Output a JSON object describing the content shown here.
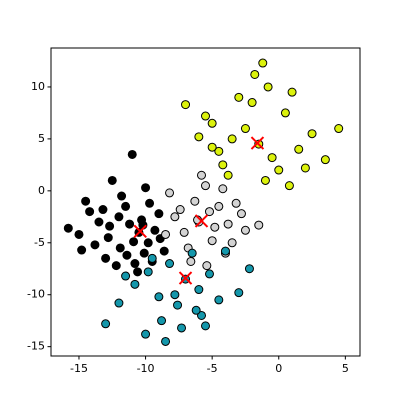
{
  "chart_data": {
    "type": "scatter",
    "xlim": [
      -17.1,
      6.1
    ],
    "ylim": [
      -15.9,
      13.75
    ],
    "xticks": [
      -15,
      -10,
      -5,
      0,
      5
    ],
    "yticks": [
      -15,
      -10,
      -5,
      0,
      5,
      10
    ],
    "series": [
      {
        "color": "#000000",
        "marker": "o",
        "x": [
          -10.5,
          -11.2,
          -9.8,
          -12.0,
          -10.1,
          -11.5,
          -9.3,
          -12.8,
          -10.8,
          -11.9,
          -13.5,
          -14.2,
          -15.0,
          -15.8,
          -13.0,
          -9.0,
          -8.6,
          -10.0,
          -11.0,
          -12.5,
          -14.5,
          -13.8,
          -10.6,
          -9.5,
          -11.8,
          -12.2,
          -10.3,
          -8.9,
          -13.2,
          -11.4,
          -10.9,
          -9.7,
          -12.7,
          -14.8,
          -10.2
        ],
        "y": [
          -4.0,
          -3.2,
          -5.0,
          -2.5,
          -6.0,
          -1.5,
          -3.8,
          -4.5,
          -7.0,
          -5.5,
          -3.0,
          -2.0,
          -4.2,
          -3.6,
          -6.5,
          -2.2,
          -5.8,
          0.3,
          3.5,
          1.0,
          -1.0,
          -5.2,
          -7.8,
          -6.8,
          -0.5,
          -7.2,
          -2.8,
          -4.6,
          -1.8,
          -6.2,
          -4.9,
          -1.2,
          -3.4,
          -5.7,
          -3.3
        ]
      },
      {
        "color": "#d3d3d3",
        "marker": "o",
        "x": [
          -6.0,
          -5.2,
          -7.1,
          -4.5,
          -6.8,
          -3.8,
          -5.5,
          -7.8,
          -4.0,
          -6.3,
          -2.5,
          -8.2,
          -5.0,
          -3.2,
          -6.6,
          -4.8,
          -7.4,
          -5.8,
          -1.5,
          -3.5,
          -6.1,
          -4.2,
          -8.5,
          -5.4,
          -2.8
        ],
        "y": [
          -3.0,
          -2.0,
          -4.0,
          -1.5,
          -5.5,
          -3.2,
          0.5,
          -2.5,
          -6.0,
          -1.0,
          -3.8,
          -0.2,
          -4.8,
          -1.2,
          -6.8,
          -3.5,
          -1.8,
          1.5,
          -3.3,
          -5.0,
          -2.8,
          0.2,
          -4.2,
          -7.2,
          -2.2
        ]
      },
      {
        "color": "#1497ab",
        "marker": "o",
        "x": [
          -7.0,
          -8.2,
          -6.0,
          -9.5,
          -5.2,
          -7.6,
          -10.8,
          -4.5,
          -8.8,
          -6.5,
          -11.5,
          -3.0,
          -9.0,
          -5.8,
          -12.0,
          -7.3,
          -13.0,
          -2.2,
          -8.5,
          -6.2,
          -10.0,
          -4.0,
          -9.8,
          -5.5,
          -7.8
        ],
        "y": [
          -8.5,
          -7.0,
          -9.5,
          -6.5,
          -8.0,
          -11.0,
          -9.0,
          -10.5,
          -12.5,
          -6.0,
          -8.2,
          -9.8,
          -10.2,
          -12.0,
          -10.8,
          -13.2,
          -12.8,
          -7.5,
          -14.5,
          -11.5,
          -13.8,
          -5.8,
          -7.8,
          -13.0,
          -10.0
        ]
      },
      {
        "color": "#dcf20c",
        "marker": "o",
        "x": [
          -1.5,
          -2.5,
          -0.5,
          -3.5,
          0.5,
          -4.2,
          1.5,
          -2.0,
          -5.0,
          0.0,
          2.5,
          -3.0,
          -1.0,
          -6.0,
          3.5,
          -4.5,
          1.0,
          -1.8,
          4.5,
          -5.5,
          2.0,
          -0.8,
          -3.8,
          -7.0,
          -1.2,
          -5.0,
          0.8
        ],
        "y": [
          4.5,
          6.0,
          3.2,
          5.0,
          7.5,
          2.5,
          4.0,
          8.5,
          6.5,
          2.0,
          5.5,
          9.0,
          1.0,
          5.2,
          3.0,
          3.8,
          9.5,
          11.2,
          6.0,
          7.2,
          2.2,
          10.0,
          1.5,
          8.3,
          12.3,
          4.2,
          0.5
        ]
      },
      {
        "color": "#ff0000",
        "marker": "x",
        "x": [
          -10.4,
          -5.8,
          -7.0,
          -1.6
        ],
        "y": [
          -3.9,
          -2.9,
          -8.4,
          4.6
        ]
      }
    ]
  }
}
